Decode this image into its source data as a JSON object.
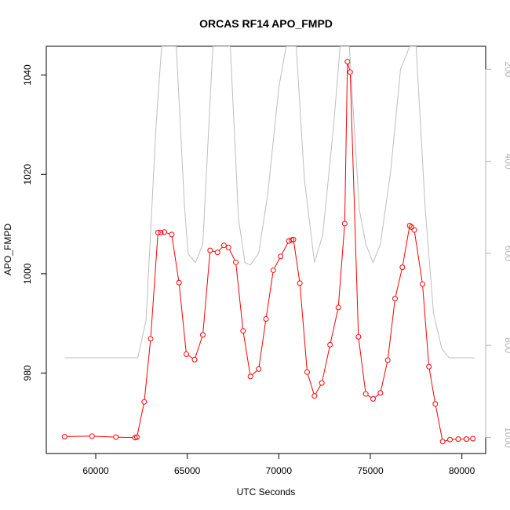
{
  "chart_data": {
    "type": "line",
    "title": "ORCAS RF14 APO_FMPD",
    "xlabel": "UTC Seconds",
    "ylabel": "APO_FMPD",
    "xlim": [
      57300,
      81300
    ],
    "ylim": [
      963.8,
      1045.8
    ],
    "y2lim": [
      1035,
      150
    ],
    "x_ticks": [
      60000,
      65000,
      70000,
      75000,
      80000
    ],
    "y_ticks": [
      980,
      1000,
      1020,
      1040
    ],
    "y2_ticks": [
      200,
      400,
      600,
      800,
      1000
    ],
    "grid": false,
    "legend": "none",
    "colors": {
      "primary": "#ff0000",
      "secondary": "#bebebe",
      "axis": "#000000",
      "secondary_axis": "#b3b3b3"
    },
    "series": [
      {
        "axis": "left",
        "style": "line+points",
        "color": "#ff0000",
        "x": [
          58300,
          59800,
          61100,
          62150,
          62250,
          62650,
          63000,
          63400,
          63550,
          63750,
          64150,
          64550,
          64950,
          65400,
          65850,
          66250,
          66650,
          67000,
          67250,
          67650,
          68050,
          68450,
          68900,
          69300,
          69700,
          70100,
          70550,
          70700,
          70800,
          71150,
          71550,
          71950,
          72350,
          72800,
          73250,
          73600,
          73750,
          73900,
          74350,
          74750,
          75150,
          75550,
          75950,
          76350,
          76750,
          77150,
          77250,
          77400,
          77850,
          78200,
          78550,
          78950,
          79350,
          79800,
          80250,
          80600
        ],
        "y": [
          967.2,
          967.3,
          967.1,
          967.0,
          967.1,
          974.2,
          986.9,
          1008.3,
          1008.3,
          1008.4,
          1007.9,
          998.2,
          983.8,
          982.7,
          987.7,
          1004.7,
          1004.3,
          1005.7,
          1005.3,
          1002.3,
          988.5,
          979.3,
          980.8,
          990.9,
          1000.7,
          1003.5,
          1006.6,
          1006.8,
          1006.9,
          998.1,
          980.2,
          975.4,
          978.0,
          985.7,
          993.2,
          1010.1,
          1042.7,
          1040.6,
          987.3,
          975.8,
          974.8,
          976.0,
          982.6,
          995.0,
          1001.3,
          1009.7,
          1009.4,
          1008.8,
          997.9,
          981.3,
          973.8,
          966.2,
          966.6,
          966.7,
          966.7,
          966.8
        ]
      },
      {
        "axis": "right",
        "style": "line",
        "color": "#bebebe",
        "x": [
          58300,
          62300,
          62750,
          63300,
          63600,
          64400,
          64850,
          65050,
          65450,
          65850,
          66400,
          66600,
          67050,
          67350,
          67800,
          68150,
          68450,
          68900,
          69400,
          70000,
          70400,
          70950,
          71400,
          71950,
          72400,
          73000,
          73350,
          73850,
          74400,
          74750,
          75150,
          75550,
          76100,
          76650,
          77150,
          77500,
          78000,
          78450,
          78900,
          79300,
          80700
        ],
        "y": [
          827,
          827,
          745,
          320,
          150,
          150,
          500,
          601,
          620,
          580,
          150,
          150,
          150,
          150,
          525,
          620,
          625,
          600,
          470,
          240,
          150,
          150,
          440,
          620,
          560,
          320,
          150,
          150,
          505,
          580,
          620,
          580,
          425,
          200,
          150,
          150,
          505,
          730,
          807,
          827,
          827
        ]
      }
    ]
  }
}
